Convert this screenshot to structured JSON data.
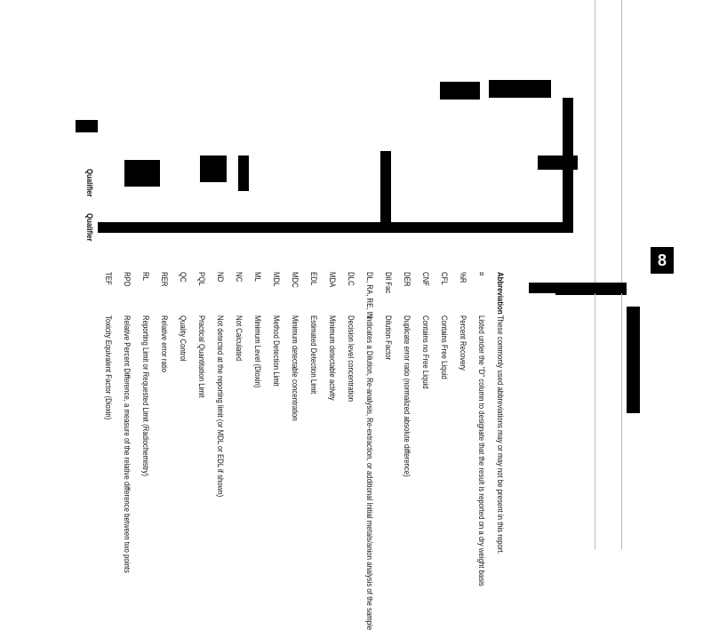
{
  "page_number": "8",
  "glossary": {
    "header": {
      "abbreviation": "Abbreviation",
      "description": "These commonly used abbreviations may or may not be present in this report."
    },
    "entries": [
      {
        "abbr": "¤",
        "text": "Listed under the \"D\" column to designate that the result is reported on a dry weight basis"
      },
      {
        "abbr": "%R",
        "text": "Percent Recovery"
      },
      {
        "abbr": "CFL",
        "text": "Contains Free Liquid"
      },
      {
        "abbr": "CNF",
        "text": "Contains no Free Liquid"
      },
      {
        "abbr": "DER",
        "text": "Duplicate error ratio (normalized absolute difference)"
      },
      {
        "abbr": "Dil Fac",
        "text": "Dilution Factor"
      },
      {
        "abbr": "DL, RA, RE, IN",
        "text": "Indicates a Dilution, Re-analysis, Re-extraction, or additional Initial metals/anion analysis of the sample"
      },
      {
        "abbr": "DLC",
        "text": "Decision level concentration"
      },
      {
        "abbr": "MDA",
        "text": "Minimum detectable activity"
      },
      {
        "abbr": "EDL",
        "text": "Estimated Detection Limit"
      },
      {
        "abbr": "MDC",
        "text": "Minimum detectable concentration"
      },
      {
        "abbr": "MDL",
        "text": "Method Detection Limit"
      },
      {
        "abbr": "ML",
        "text": "Minimum Level (Dioxin)"
      },
      {
        "abbr": "NC",
        "text": "Not Calculated"
      },
      {
        "abbr": "ND",
        "text": "Not detected at the reporting limit (or MDL or EDL if shown)"
      },
      {
        "abbr": "PQL",
        "text": "Practical Quantitation Limit"
      },
      {
        "abbr": "QC",
        "text": "Quality Control"
      },
      {
        "abbr": "RER",
        "text": "Relative error ratio"
      },
      {
        "abbr": "RL",
        "text": "Reporting Limit or Requested Limit (Radiochemistry)"
      },
      {
        "abbr": "RPD",
        "text": "Relative Percent Difference, a measure of the relative difference between two points"
      },
      {
        "abbr": "TEF",
        "text": "Toxicity Equivalent Factor (Dioxin)"
      }
    ]
  },
  "qualifiers": [
    "Qualifier",
    "Qualifier"
  ]
}
